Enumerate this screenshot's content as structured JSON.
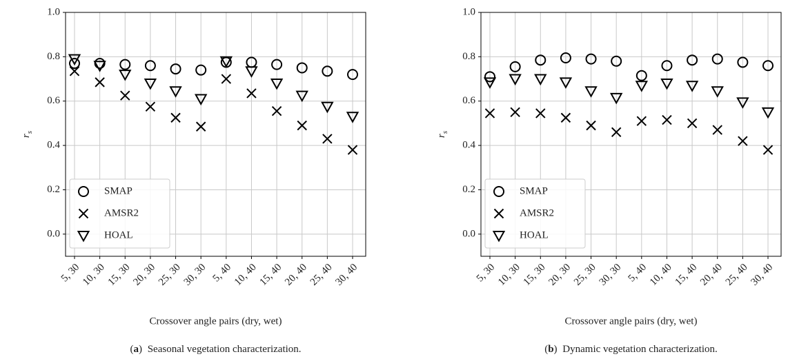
{
  "chart_data": [
    {
      "type": "scatter",
      "caption_label": "a",
      "caption_text": "Seasonal vegetation characterization.",
      "xlabel": "Crossover angle pairs (dry, wet)",
      "ylabel": {
        "main": "r",
        "sub": "s"
      },
      "categories": [
        "5, 30",
        "10, 30",
        "15, 30",
        "20, 30",
        "25, 30",
        "30, 30",
        "5, 40",
        "10, 40",
        "15, 40",
        "20, 40",
        "25, 40",
        "30, 40"
      ],
      "series": [
        {
          "name": "SMAP",
          "marker": "circle",
          "color": "#000000",
          "values": [
            0.77,
            0.77,
            0.765,
            0.76,
            0.745,
            0.74,
            0.775,
            0.775,
            0.765,
            0.75,
            0.735,
            0.72
          ]
        },
        {
          "name": "AMSR2",
          "marker": "x",
          "color": "#000000",
          "values": [
            0.735,
            0.685,
            0.625,
            0.575,
            0.525,
            0.485,
            0.7,
            0.635,
            0.555,
            0.49,
            0.43,
            0.38
          ]
        },
        {
          "name": "HOAL",
          "marker": "triangle-down",
          "color": "#000000",
          "values": [
            0.79,
            0.76,
            0.72,
            0.68,
            0.645,
            0.61,
            0.78,
            0.735,
            0.68,
            0.625,
            0.575,
            0.53
          ]
        }
      ],
      "ylim": [
        -0.1,
        1.0
      ],
      "yticks": [
        {
          "value": 0,
          "label": "0.0"
        },
        0.2,
        0.4,
        0.6,
        0.8,
        {
          "value": 1,
          "label": "1.0"
        }
      ],
      "grid": true,
      "legend": "lower left"
    },
    {
      "type": "scatter",
      "caption_label": "b",
      "caption_text": "Dynamic vegetation characterization.",
      "xlabel": "Crossover angle pairs (dry, wet)",
      "ylabel": {
        "main": "r",
        "sub": "s"
      },
      "categories": [
        "5, 30",
        "10, 30",
        "15, 30",
        "20, 30",
        "25, 30",
        "30, 30",
        "5, 40",
        "10, 40",
        "15, 40",
        "20, 40",
        "25, 40",
        "30, 40"
      ],
      "series": [
        {
          "name": "SMAP",
          "marker": "circle",
          "color": "#000000",
          "values": [
            0.71,
            0.755,
            0.785,
            0.795,
            0.79,
            0.78,
            0.715,
            0.76,
            0.785,
            0.79,
            0.775,
            0.76
          ]
        },
        {
          "name": "AMSR2",
          "marker": "x",
          "color": "#000000",
          "values": [
            0.545,
            0.55,
            0.545,
            0.525,
            0.49,
            0.46,
            0.51,
            0.515,
            0.5,
            0.47,
            0.42,
            0.38
          ]
        },
        {
          "name": "HOAL",
          "marker": "triangle-down",
          "color": "#000000",
          "values": [
            0.685,
            0.7,
            0.7,
            0.685,
            0.645,
            0.615,
            0.67,
            0.68,
            0.67,
            0.645,
            0.595,
            0.55
          ]
        }
      ],
      "ylim": [
        -0.1,
        1.0
      ],
      "yticks": [
        {
          "value": 0,
          "label": "0.0"
        },
        0.2,
        0.4,
        0.6,
        0.8,
        {
          "value": 1,
          "label": "1.0"
        }
      ],
      "grid": true,
      "legend": "lower left"
    }
  ]
}
